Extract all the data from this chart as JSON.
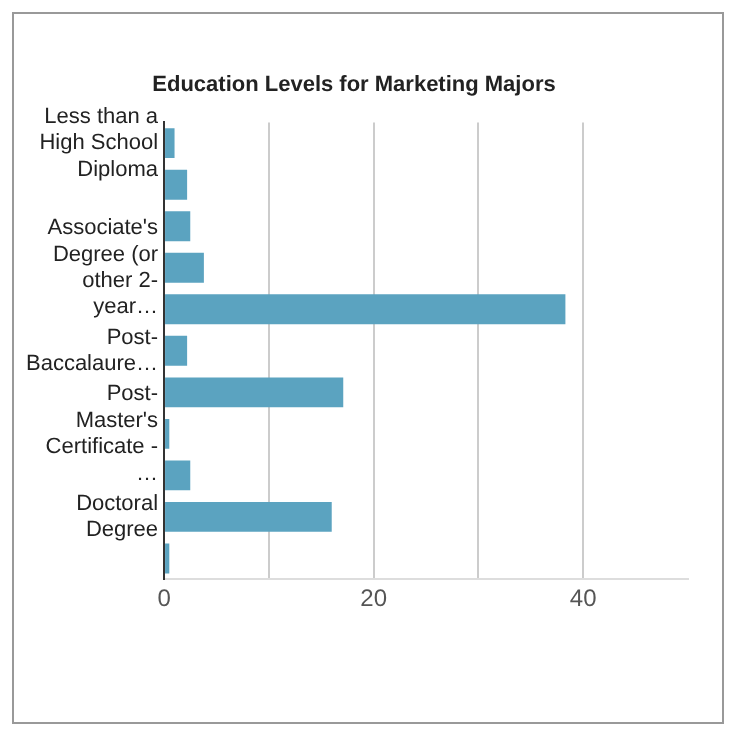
{
  "chart_data": {
    "type": "bar",
    "orientation": "horizontal",
    "title": "Education Levels for Marketing Majors",
    "categories": [
      "Less than a High School Diploma",
      null,
      null,
      "Associate's Degree (or other 2-year…",
      null,
      "Post-Baccalaure…",
      null,
      "Post-Master's Certificate -…",
      null,
      "Doctoral Degree",
      null
    ],
    "values": [
      1,
      2.2,
      2.5,
      3.8,
      38.3,
      2.2,
      17.1,
      0.5,
      2.5,
      16,
      0.5
    ],
    "color": "#5ba3c0",
    "xlim": [
      0,
      50
    ],
    "xticks": [
      0,
      {
        "value": 10,
        "label": null
      },
      20,
      {
        "value": 30,
        "label": null
      },
      40
    ],
    "grid": "x",
    "legend": false
  }
}
